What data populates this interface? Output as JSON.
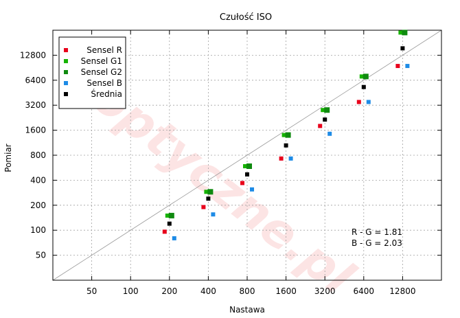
{
  "chart_data": {
    "type": "scatter",
    "title": "Czułość ISO",
    "xlabel": "Nastawa",
    "ylabel": "Pomiar",
    "x_scale": "log",
    "y_scale": "log",
    "xlim": [
      25,
      25600
    ],
    "ylim": [
      25,
      25600
    ],
    "x_ticks": [
      50,
      100,
      200,
      400,
      800,
      1600,
      3200,
      6400,
      12800
    ],
    "y_ticks": [
      50,
      100,
      200,
      400,
      800,
      1600,
      3200,
      6400,
      12800
    ],
    "x_tick_labels": [
      "50",
      "100",
      "200",
      "400",
      "800",
      "1600",
      "3200",
      "6400",
      "12800"
    ],
    "y_tick_labels": [
      "50",
      "100",
      "200",
      "400",
      "800",
      "1600",
      "3200",
      "6400",
      "12800"
    ],
    "grid": true,
    "legend_position": "top-left",
    "reference_line": "y = x",
    "series": [
      {
        "name": "Sensel R",
        "color": "#e8001b",
        "x": [
          200,
          400,
          800,
          1600,
          3200,
          6400,
          12800
        ],
        "y": [
          96,
          190,
          370,
          730,
          1800,
          3500,
          9500
        ]
      },
      {
        "name": "Sensel G1",
        "color": "#16b300",
        "x": [
          200,
          400,
          800,
          1600,
          3200,
          6400,
          12800
        ],
        "y": [
          150,
          290,
          590,
          1400,
          2800,
          7100,
          24000
        ]
      },
      {
        "name": "Sensel G2",
        "color": "#0f8a0f",
        "x": [
          200,
          400,
          800,
          1600,
          3200,
          6400,
          12800
        ],
        "y": [
          150,
          290,
          590,
          1400,
          2800,
          7100,
          24000
        ]
      },
      {
        "name": "Sensel B",
        "color": "#1e8be6",
        "x": [
          200,
          400,
          800,
          1600,
          3200,
          6400,
          12800
        ],
        "y": [
          80,
          155,
          310,
          730,
          1450,
          3500,
          9500
        ]
      },
      {
        "name": "Średnia",
        "color": "#000000",
        "x": [
          200,
          400,
          800,
          1600,
          3200,
          6400,
          12800
        ],
        "y": [
          120,
          240,
          470,
          1050,
          2150,
          5300,
          15500
        ]
      }
    ],
    "annotations": [
      "R - G = 1.81",
      "B - G = 2.03"
    ],
    "watermark": "optyczne.pl"
  }
}
